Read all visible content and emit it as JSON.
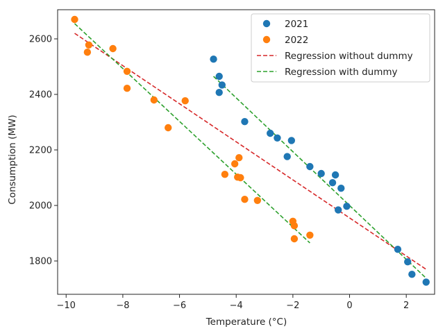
{
  "chart_data": {
    "type": "scatter",
    "title": "",
    "xlabel": "Temperature (°C)",
    "ylabel": "Consumption (MW)",
    "xlim": [
      -10.3,
      3.0
    ],
    "ylim": [
      1680,
      2705
    ],
    "xticks": [
      -10,
      -8,
      -6,
      -4,
      -2,
      0,
      2
    ],
    "yticks": [
      1800,
      2000,
      2200,
      2400,
      2600
    ],
    "grid": false,
    "legend_position": "top-right",
    "colors": {
      "series_2021": "#1f77b4",
      "series_2022": "#ff7f0e",
      "regression_without_dummy": "#d62728",
      "regression_with_dummy": "#2ca02c"
    },
    "series": [
      {
        "name": "2021",
        "kind": "scatter",
        "points": [
          [
            -4.8,
            2527
          ],
          [
            -4.6,
            2465
          ],
          [
            -4.6,
            2407
          ],
          [
            -4.5,
            2434
          ],
          [
            -3.7,
            2302
          ],
          [
            -2.8,
            2260
          ],
          [
            -2.55,
            2243
          ],
          [
            -2.2,
            2176
          ],
          [
            -2.05,
            2234
          ],
          [
            -1.4,
            2140
          ],
          [
            -1.0,
            2115
          ],
          [
            -0.6,
            2082
          ],
          [
            -0.5,
            2110
          ],
          [
            -0.3,
            2062
          ],
          [
            -0.1,
            1997
          ],
          [
            -0.4,
            1984
          ],
          [
            1.7,
            1842
          ],
          [
            2.05,
            1797
          ],
          [
            2.2,
            1752
          ],
          [
            2.7,
            1724
          ]
        ]
      },
      {
        "name": "2022",
        "kind": "scatter",
        "points": [
          [
            -9.7,
            2670
          ],
          [
            -9.2,
            2578
          ],
          [
            -9.25,
            2552
          ],
          [
            -8.35,
            2565
          ],
          [
            -7.85,
            2483
          ],
          [
            -7.85,
            2422
          ],
          [
            -6.9,
            2380
          ],
          [
            -6.4,
            2280
          ],
          [
            -5.8,
            2377
          ],
          [
            -4.4,
            2112
          ],
          [
            -4.05,
            2150
          ],
          [
            -3.9,
            2172
          ],
          [
            -3.95,
            2102
          ],
          [
            -3.85,
            2100
          ],
          [
            -3.7,
            2022
          ],
          [
            -3.25,
            2018
          ],
          [
            -2.0,
            1943
          ],
          [
            -1.95,
            1927
          ],
          [
            -1.95,
            1880
          ],
          [
            -1.4,
            1893
          ]
        ]
      },
      {
        "name": "Regression without dummy",
        "kind": "line",
        "style": "dashed",
        "points": [
          [
            -9.7,
            2620
          ],
          [
            2.7,
            1770
          ]
        ]
      },
      {
        "name": "Regression with dummy",
        "kind": "line",
        "style": "dashed",
        "segments": [
          [
            [
              -9.7,
              2655
            ],
            [
              -1.4,
              1865
            ]
          ],
          [
            [
              -4.8,
              2465
            ],
            [
              2.7,
              1738
            ]
          ]
        ]
      }
    ]
  }
}
